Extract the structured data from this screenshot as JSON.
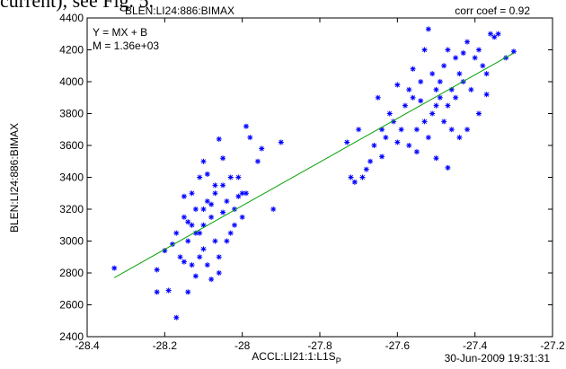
{
  "context_text": "current), see Fig. 5.",
  "chart_data": {
    "type": "scatter",
    "title": "BLEN:LI24:886:BIMAX",
    "corr_label": "corr coef = 0.92",
    "annotations": [
      "Y = MX + B",
      "M = 1.36e+03"
    ],
    "ylabel": "BLEN:LI24:886:BIMAX",
    "xlabel": {
      "text": "ACCL:LI21:1:L1S",
      "subscript": "P"
    },
    "timestamp": "30-Jun-2009 19:31:31",
    "xlim": [
      -28.4,
      -27.2
    ],
    "xticks": [
      -28.4,
      -28.2,
      -28,
      -27.8,
      -27.6,
      -27.4,
      -27.2
    ],
    "ylim": [
      2400,
      4400
    ],
    "yticks": [
      2400,
      2600,
      2800,
      3000,
      3200,
      3400,
      3600,
      3800,
      4000,
      4200,
      4400
    ],
    "color": "#0000ff",
    "x": [
      -28.33,
      -28.22,
      -28.19,
      -28.22,
      -28.2,
      -28.17,
      -28.15,
      -28.14,
      -28.13,
      -28.12,
      -28.11,
      -28.1,
      -28.09,
      -28.08,
      -28.07,
      -28.06,
      -28.05,
      -28.04,
      -28.03,
      -28.02,
      -28.01,
      -28.0,
      -27.99,
      -27.98,
      -27.96,
      -27.95,
      -27.92,
      -27.9,
      -28.06,
      -28.1,
      -28.05,
      -28.12,
      -28.08,
      -28.06,
      -28.14,
      -28.16,
      -28.18,
      -28.15,
      -28.13,
      -28.11,
      -28.09,
      -28.07,
      -28.04,
      -28.02,
      -28.0,
      -28.03,
      -28.1,
      -28.12,
      -28.14,
      -28.17,
      -28.13,
      -28.11,
      -28.09,
      -28.07,
      -28.05,
      -28.01,
      -27.99,
      -28.08,
      -28.1,
      -28.15,
      -27.73,
      -27.72,
      -27.71,
      -27.7,
      -27.68,
      -27.67,
      -27.66,
      -27.65,
      -27.64,
      -27.63,
      -27.62,
      -27.61,
      -27.6,
      -27.58,
      -27.57,
      -27.56,
      -27.55,
      -27.54,
      -27.53,
      -27.52,
      -27.51,
      -27.5,
      -27.49,
      -27.48,
      -27.47,
      -27.46,
      -27.45,
      -27.44,
      -27.43,
      -27.42,
      -27.41,
      -27.4,
      -27.39,
      -27.38,
      -27.37,
      -27.36,
      -27.35,
      -27.34,
      -27.3,
      -27.32,
      -27.37,
      -27.47,
      -27.5,
      -27.55,
      -27.6,
      -27.64,
      -27.69,
      -27.53,
      -27.48,
      -27.44,
      -27.52,
      -27.5,
      -27.46,
      -27.49,
      -27.51,
      -27.57,
      -27.59,
      -27.56,
      -27.45,
      -27.42,
      -27.39,
      -27.43,
      -27.47,
      -27.54
    ],
    "values": [
      2830,
      2680,
      2690,
      2820,
      2940,
      2520,
      2870,
      3000,
      3100,
      3200,
      3050,
      2950,
      3250,
      3150,
      3300,
      2900,
      3350,
      3000,
      3400,
      3200,
      3280,
      3300,
      3720,
      3650,
      3500,
      3580,
      3200,
      3620,
      3640,
      3500,
      3520,
      2780,
      2760,
      2800,
      2680,
      2900,
      2980,
      3150,
      3300,
      3400,
      3420,
      3350,
      3250,
      3100,
      3150,
      3050,
      3100,
      3050,
      3120,
      3050,
      2850,
      2900,
      2850,
      3000,
      3180,
      3400,
      3300,
      3230,
      3200,
      3280,
      3620,
      3400,
      3370,
      3700,
      3450,
      3500,
      3600,
      3900,
      3700,
      3650,
      3800,
      3750,
      3980,
      3850,
      3600,
      3900,
      3700,
      4000,
      4200,
      4330,
      3800,
      3950,
      3900,
      4100,
      3850,
      3700,
      4150,
      4050,
      4000,
      4250,
      3950,
      4150,
      3800,
      4100,
      3920,
      4300,
      4280,
      4300,
      4190,
      4150,
      4050,
      3460,
      3520,
      3560,
      3620,
      3530,
      3400,
      3750,
      3750,
      3650,
      3650,
      3850,
      3950,
      4000,
      4050,
      3950,
      3700,
      4080,
      3900,
      3700,
      4200,
      4180,
      4200,
      3880
    ],
    "fit_line": {
      "x": [
        -28.33,
        -27.3
      ],
      "values": [
        2770,
        4180
      ],
      "color": "#00a000"
    }
  }
}
